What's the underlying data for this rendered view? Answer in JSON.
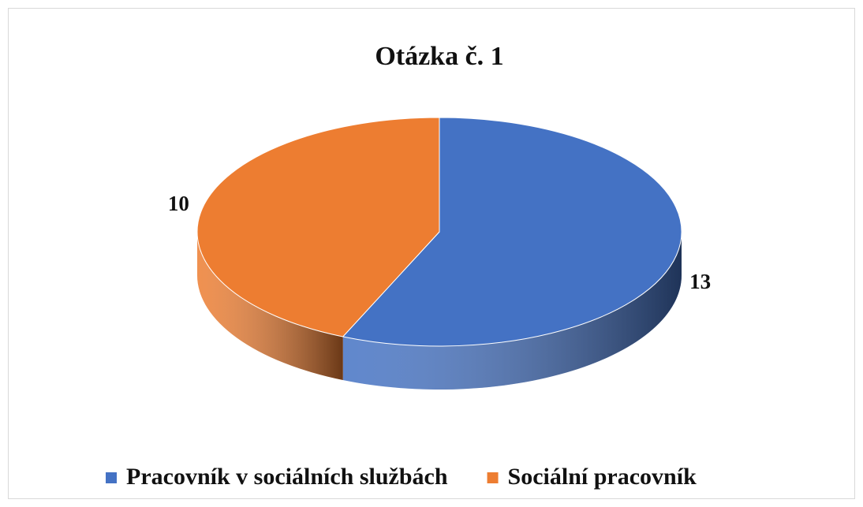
{
  "chart_data": {
    "type": "pie",
    "title": "Otázka č. 1",
    "categories": [
      "Pracovník v sociálních službách",
      "Sociální pracovník"
    ],
    "values": [
      13,
      10
    ],
    "colors": [
      "#4472c4",
      "#ed7d31"
    ],
    "legend": "bottom"
  }
}
